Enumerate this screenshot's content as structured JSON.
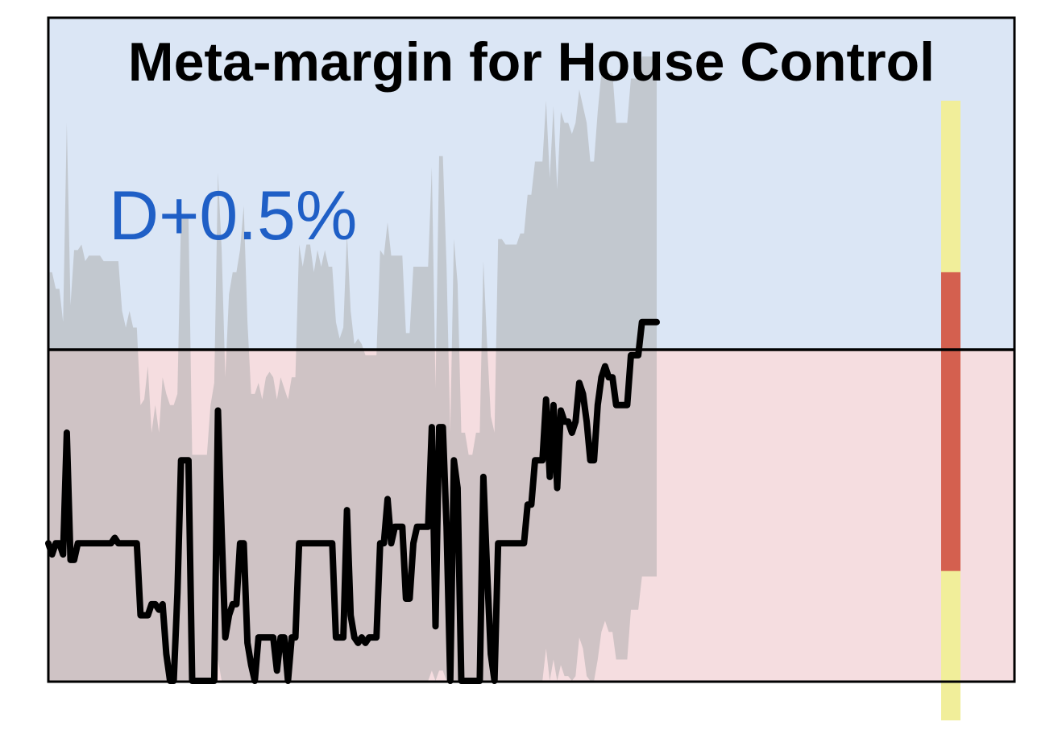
{
  "chart_data": {
    "type": "line",
    "title": "Meta-margin for House Control",
    "current_label": "D+0.5%",
    "ylim": [
      -6,
      6
    ],
    "zero_line": 0,
    "grid": false,
    "colors": {
      "dem_region": "#dbe6f5",
      "rep_region": "#f5dde0",
      "band": "#a9a9aa",
      "line": "#000000",
      "label": "#1f5fc6",
      "bar_inner": "#d4604f",
      "bar_outer": "#f1ee9a"
    },
    "series": [
      {
        "values": [
          -3.5,
          -3.7,
          -3.5,
          -3.5,
          -3.7,
          -1.5,
          -3.8,
          -3.8,
          -3.5,
          -3.5,
          -3.5,
          -3.5,
          -3.5,
          -3.5,
          -3.5,
          -3.5,
          -3.5,
          -3.5,
          -3.4,
          -3.5,
          -3.5,
          -3.5,
          -3.5,
          -3.5,
          -3.5,
          -4.8,
          -4.8,
          -4.8,
          -4.6,
          -4.6,
          -4.7,
          -4.6,
          -5.5,
          -6.0,
          -6.0,
          -4.4,
          -2.0,
          -2.0,
          -2.0,
          -6.0,
          -6.0,
          -6.0,
          -6.0,
          -6.0,
          -6.0,
          -6.0,
          -1.1,
          -3.3,
          -5.2,
          -4.8,
          -4.6,
          -4.6,
          -3.5,
          -3.5,
          -5.3,
          -5.7,
          -6.0,
          -5.2,
          -5.2,
          -5.2,
          -5.2,
          -5.2,
          -5.8,
          -5.2,
          -5.2,
          -6.0,
          -5.2,
          -5.2,
          -3.5,
          -3.5,
          -3.5,
          -3.5,
          -3.5,
          -3.5,
          -3.5,
          -3.5,
          -3.5,
          -3.5,
          -5.2,
          -5.2,
          -5.2,
          -2.9,
          -4.8,
          -5.2,
          -5.3,
          -5.2,
          -5.3,
          -5.2,
          -5.2,
          -5.2,
          -3.5,
          -3.5,
          -2.7,
          -3.5,
          -3.2,
          -3.2,
          -3.2,
          -4.5,
          -4.5,
          -3.5,
          -3.2,
          -3.2,
          -3.2,
          -3.2,
          -1.4,
          -5.0,
          -1.4,
          -1.4,
          -3.2,
          -6.0,
          -2.0,
          -2.5,
          -6.0,
          -6.0,
          -6.6,
          -6.6,
          -6.0,
          -6.0,
          -2.3,
          -4.0,
          -5.5,
          -6.2,
          -3.5,
          -3.5,
          -3.5,
          -3.5,
          -3.5,
          -3.5,
          -3.5,
          -3.5,
          -2.8,
          -2.8,
          -2.0,
          -2.0,
          -2.0,
          -0.9,
          -2.3,
          -1.0,
          -2.5,
          -1.1,
          -1.3,
          -1.3,
          -1.5,
          -1.3,
          -0.6,
          -0.8,
          -1.3,
          -2.0,
          -2.0,
          -1.0,
          -0.5,
          -0.3,
          -0.5,
          -0.5,
          -1.0,
          -1.0,
          -1.0,
          -1.0,
          -0.1,
          -0.1,
          -0.1,
          0.5,
          0.5,
          0.5,
          0.5,
          0.5
        ]
      }
    ],
    "band": {
      "upper": [
        1.4,
        1.4,
        1.1,
        1.1,
        0.5,
        4.1,
        0.8,
        1.8,
        1.8,
        1.9,
        1.6,
        1.7,
        1.7,
        1.7,
        1.7,
        1.6,
        1.6,
        1.6,
        1.6,
        1.6,
        0.7,
        0.4,
        0.7,
        0.4,
        0.4,
        -1.0,
        -0.9,
        -0.3,
        -1.5,
        -1.0,
        -1.5,
        -0.5,
        -0.8,
        -1.0,
        -1.0,
        -0.8,
        2.4,
        2.4,
        2.4,
        -1.9,
        -1.9,
        -1.9,
        -1.9,
        -1.9,
        -1.0,
        -0.6,
        3.2,
        1.8,
        -0.5,
        1.0,
        1.4,
        1.4,
        1.8,
        2.6,
        0.5,
        -0.8,
        -0.8,
        -0.6,
        -0.9,
        -0.5,
        -0.4,
        -0.5,
        -0.9,
        -0.5,
        -0.7,
        -0.9,
        -0.5,
        -0.5,
        1.9,
        1.5,
        1.9,
        1.9,
        1.4,
        1.8,
        1.5,
        1.8,
        1.5,
        1.5,
        0.5,
        0.2,
        0.4,
        2.1,
        0.7,
        0.1,
        0.2,
        0.1,
        -0.1,
        -0.1,
        -0.1,
        -0.1,
        1.8,
        1.7,
        2.3,
        1.7,
        1.7,
        1.7,
        1.7,
        0.3,
        0.3,
        1.5,
        1.5,
        1.5,
        1.5,
        1.5,
        3.3,
        -0.7,
        3.5,
        3.5,
        1.5,
        -1.5,
        2.0,
        1.2,
        -1.5,
        -1.5,
        -1.9,
        -1.9,
        -1.5,
        -1.5,
        1.6,
        0.1,
        -1.2,
        -1.5,
        2.0,
        2.0,
        1.9,
        1.9,
        1.9,
        1.9,
        2.1,
        2.1,
        2.8,
        2.8,
        3.4,
        3.4,
        3.4,
        4.5,
        3.1,
        4.4,
        2.9,
        4.3,
        4.1,
        4.1,
        3.9,
        4.1,
        4.7,
        4.4,
        4.1,
        3.4,
        3.4,
        4.3,
        5.0,
        5.2,
        5.0,
        5.0,
        4.1,
        4.1,
        4.1,
        4.1,
        4.9,
        4.9,
        4.9,
        5.3,
        5.3,
        5.3,
        5.3,
        5.3
      ],
      "lower": [
        -8.5,
        -8.5,
        -8.8,
        -8.3,
        -8.9,
        -6.3,
        -10.1,
        -8.0,
        -7.3,
        -7.4,
        -8.2,
        -7.3,
        -7.8,
        -7.8,
        -7.3,
        -7.3,
        -7.3,
        -7.3,
        -7.3,
        -7.3,
        -7.3,
        -7.3,
        -7.3,
        -7.3,
        -7.3,
        -9.0,
        -9.0,
        -8.6,
        -8.6,
        -8.6,
        -8.6,
        -8.6,
        -9.6,
        -10.5,
        -10.5,
        -9.3,
        -6.5,
        -6.5,
        -6.5,
        -10.5,
        -10.5,
        -10.5,
        -10.5,
        -10.5,
        -10.5,
        -10.5,
        -5.6,
        -7.7,
        -9.9,
        -9.4,
        -9.4,
        -9.4,
        -7.9,
        -7.9,
        -9.6,
        -9.8,
        -10.5,
        -9.6,
        -9.6,
        -9.6,
        -9.6,
        -9.6,
        -10.2,
        -9.6,
        -9.6,
        -10.5,
        -9.6,
        -9.6,
        -7.9,
        -7.9,
        -7.9,
        -7.9,
        -7.9,
        -7.9,
        -7.9,
        -7.9,
        -7.9,
        -7.9,
        -9.6,
        -9.6,
        -9.6,
        -7.3,
        -9.2,
        -9.6,
        -9.6,
        -9.6,
        -9.6,
        -9.6,
        -9.6,
        -9.6,
        -7.9,
        -7.9,
        -7.1,
        -7.9,
        -7.6,
        -7.6,
        -7.6,
        -8.9,
        -8.9,
        -7.9,
        -7.6,
        -7.6,
        -7.6,
        -7.6,
        -5.8,
        -9.4,
        -5.8,
        -5.8,
        -7.6,
        -10.5,
        -6.4,
        -6.9,
        -10.5,
        -10.5,
        -10.5,
        -10.5,
        -10.5,
        -10.5,
        -6.8,
        -8.5,
        -9.9,
        -10.6,
        -7.9,
        -7.9,
        -7.9,
        -7.9,
        -7.9,
        -7.9,
        -7.9,
        -7.9,
        -7.2,
        -7.2,
        -6.5,
        -6.5,
        -6.5,
        -5.4,
        -6.9,
        -5.6,
        -7.0,
        -5.7,
        -5.9,
        -5.9,
        -6.1,
        -5.9,
        -5.2,
        -5.4,
        -5.9,
        -6.6,
        -6.6,
        -5.6,
        -5.1,
        -4.9,
        -5.1,
        -5.1,
        -5.6,
        -5.6,
        -5.6,
        -5.6,
        -4.7,
        -4.7,
        -4.7,
        -4.1,
        -4.1,
        -4.1,
        -4.1,
        -4.1
      ]
    },
    "range_bar": {
      "outer": [
        -6.7,
        4.5
      ],
      "inner": [
        -4.0,
        1.4
      ]
    }
  }
}
